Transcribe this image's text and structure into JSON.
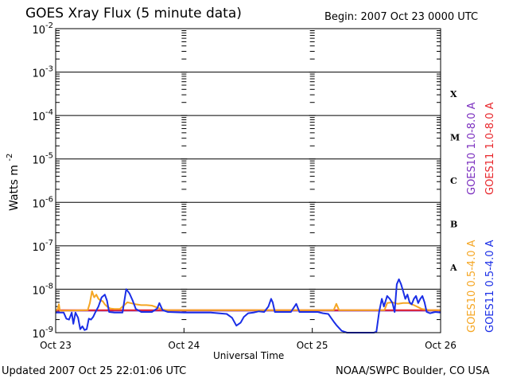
{
  "header": {
    "title": "GOES Xray Flux (5 minute data)",
    "begin": "Begin:  2007 Oct 23 0000 UTC"
  },
  "footer": {
    "updated": "Updated 2007 Oct 25 22:01:06 UTC",
    "credit": "NOAA/SWPC Boulder, CO USA"
  },
  "chart_data": {
    "type": "line",
    "title": "GOES Xray Flux (5 minute data)",
    "xlabel": "Universal Time",
    "ylabel": "Watts m",
    "ylabel_superscript": "-2",
    "y_scale": "log",
    "ylim": [
      1e-09,
      0.01
    ],
    "xlim": [
      0,
      72
    ],
    "x_unit": "hours since 2007 Oct 23 0000 UTC",
    "grid": true,
    "x_ticks": [
      {
        "x": 0,
        "label": "Oct 23"
      },
      {
        "x": 24,
        "label": "Oct 24"
      },
      {
        "x": 48,
        "label": "Oct 25"
      },
      {
        "x": 72,
        "label": "Oct 26"
      }
    ],
    "y_ticks": [
      {
        "exp": -2,
        "base": "10",
        "sup": "-2"
      },
      {
        "exp": -3,
        "base": "10",
        "sup": "-3"
      },
      {
        "exp": -4,
        "base": "10",
        "sup": "-4"
      },
      {
        "exp": -5,
        "base": "10",
        "sup": "-5"
      },
      {
        "exp": -6,
        "base": "10",
        "sup": "-6"
      },
      {
        "exp": -7,
        "base": "10",
        "sup": "-7"
      },
      {
        "exp": -8,
        "base": "10",
        "sup": "-8"
      },
      {
        "exp": -9,
        "base": "10",
        "sup": "-9"
      }
    ],
    "flare_classes": [
      {
        "label": "X",
        "exp": -3.5
      },
      {
        "label": "M",
        "exp": -4.5
      },
      {
        "label": "C",
        "exp": -5.5
      },
      {
        "label": "B",
        "exp": -6.5
      },
      {
        "label": "A",
        "exp": -7.5
      }
    ],
    "legend": {
      "placement": "right-vertical",
      "entries": [
        {
          "label": "GOES10 1.0-8.0 A",
          "color": "#7b2fbf",
          "group": "top"
        },
        {
          "label": "GOES11 1.0-8.0 A",
          "color": "#e8262b",
          "group": "top"
        },
        {
          "label": "GOES10 0.5-4.0 A",
          "color": "#f5a623",
          "group": "bottom"
        },
        {
          "label": "GOES11 0.5-4.0 A",
          "color": "#1a2ee6",
          "group": "bottom"
        }
      ]
    },
    "series": [
      {
        "name": "GOES10 1.0-8.0 A",
        "color": "#7b2fbf",
        "points": [
          [
            0,
            3.2e-09
          ],
          [
            72,
            3.2e-09
          ]
        ]
      },
      {
        "name": "GOES11 1.0-8.0 A",
        "color": "#e8262b",
        "points": [
          [
            0,
            3.3e-09
          ],
          [
            72,
            3.3e-09
          ]
        ]
      },
      {
        "name": "GOES10 0.5-4.0 A",
        "color": "#f5a623",
        "points": [
          [
            0.0,
            3.2e-09
          ],
          [
            0.4,
            3.5e-09
          ],
          [
            0.6,
            4.5e-09
          ],
          [
            0.8,
            3.2e-09
          ],
          [
            1.2,
            3.2e-09
          ],
          [
            6.0,
            3.3e-09
          ],
          [
            6.4,
            4.8e-09
          ],
          [
            6.8,
            9e-09
          ],
          [
            7.2,
            6.5e-09
          ],
          [
            7.6,
            7.5e-09
          ],
          [
            8.0,
            6e-09
          ],
          [
            8.4,
            5.5e-09
          ],
          [
            8.8,
            5.3e-09
          ],
          [
            9.2,
            4.5e-09
          ],
          [
            9.6,
            4e-09
          ],
          [
            10.2,
            3.6e-09
          ],
          [
            11.0,
            3.5e-09
          ],
          [
            12.0,
            3.5e-09
          ],
          [
            13.0,
            4.5e-09
          ],
          [
            13.4,
            5e-09
          ],
          [
            14.0,
            4.8e-09
          ],
          [
            15.0,
            4.5e-09
          ],
          [
            16.0,
            4.3e-09
          ],
          [
            17.0,
            4.3e-09
          ],
          [
            18.0,
            4.2e-09
          ],
          [
            19.0,
            3.8e-09
          ],
          [
            20.0,
            3.4e-09
          ],
          [
            21.0,
            3.3e-09
          ],
          [
            24.0,
            3.3e-09
          ],
          [
            52.0,
            3.3e-09
          ],
          [
            52.5,
            4.6e-09
          ],
          [
            53.0,
            3.3e-09
          ],
          [
            61.5,
            3.3e-09
          ],
          [
            62.0,
            4.8e-09
          ],
          [
            63.0,
            5e-09
          ],
          [
            64.0,
            4.6e-09
          ],
          [
            65.0,
            4.8e-09
          ],
          [
            66.0,
            4.8e-09
          ],
          [
            67.0,
            4.3e-09
          ],
          [
            68.5,
            3.5e-09
          ],
          [
            70.0,
            3.3e-09
          ],
          [
            72.0,
            3.3e-09
          ]
        ]
      },
      {
        "name": "GOES11 0.5-4.0 A",
        "color": "#1a2ee6",
        "points": [
          [
            0.0,
            2.9e-09
          ],
          [
            1.5,
            2.9e-09
          ],
          [
            2.0,
            2.1e-09
          ],
          [
            2.5,
            2e-09
          ],
          [
            3.0,
            2.9e-09
          ],
          [
            3.3,
            1.6e-09
          ],
          [
            3.7,
            2.9e-09
          ],
          [
            4.2,
            2.2e-09
          ],
          [
            4.6,
            1.2e-09
          ],
          [
            5.0,
            1.4e-09
          ],
          [
            5.4,
            1.15e-09
          ],
          [
            5.8,
            1.2e-09
          ],
          [
            6.2,
            2.1e-09
          ],
          [
            6.6,
            2e-09
          ],
          [
            7.0,
            2.3e-09
          ],
          [
            7.4,
            2.9e-09
          ],
          [
            8.0,
            4e-09
          ],
          [
            8.6,
            6.5e-09
          ],
          [
            9.2,
            7.5e-09
          ],
          [
            9.6,
            5.5e-09
          ],
          [
            10.0,
            3e-09
          ],
          [
            11.0,
            2.9e-09
          ],
          [
            12.5,
            2.9e-09
          ],
          [
            13.2,
            1e-08
          ],
          [
            13.8,
            8e-09
          ],
          [
            14.4,
            5.5e-09
          ],
          [
            15.0,
            3.5e-09
          ],
          [
            16.0,
            3e-09
          ],
          [
            17.0,
            3e-09
          ],
          [
            18.0,
            3e-09
          ],
          [
            19.0,
            3.6e-09
          ],
          [
            19.4,
            4.8e-09
          ],
          [
            20.0,
            3.3e-09
          ],
          [
            21.0,
            3e-09
          ],
          [
            24.0,
            2.9e-09
          ],
          [
            29.0,
            2.9e-09
          ],
          [
            32.0,
            2.7e-09
          ],
          [
            33.0,
            2.2e-09
          ],
          [
            33.8,
            1.45e-09
          ],
          [
            34.6,
            1.7e-09
          ],
          [
            35.2,
            2.3e-09
          ],
          [
            36.0,
            2.8e-09
          ],
          [
            37.0,
            2.9e-09
          ],
          [
            38.0,
            3.1e-09
          ],
          [
            39.0,
            3e-09
          ],
          [
            39.8,
            4e-09
          ],
          [
            40.3,
            6e-09
          ],
          [
            40.6,
            5e-09
          ],
          [
            41.0,
            3e-09
          ],
          [
            44.0,
            3e-09
          ],
          [
            45.0,
            4.6e-09
          ],
          [
            45.6,
            3e-09
          ],
          [
            48.0,
            3e-09
          ],
          [
            49.0,
            3e-09
          ],
          [
            50.0,
            2.8e-09
          ],
          [
            51.0,
            2.7e-09
          ],
          [
            51.5,
            2.2e-09
          ],
          [
            52.0,
            1.8e-09
          ],
          [
            52.5,
            1.5e-09
          ],
          [
            53.5,
            1.1e-09
          ],
          [
            54.5,
            1e-09
          ],
          [
            56.5,
            1e-09
          ],
          [
            57.5,
            1e-09
          ],
          [
            59.0,
            1e-09
          ],
          [
            59.5,
            1e-09
          ],
          [
            60.0,
            1.05e-09
          ],
          [
            60.5,
            3e-09
          ],
          [
            61.0,
            6e-09
          ],
          [
            61.4,
            4e-09
          ],
          [
            62.0,
            7e-09
          ],
          [
            62.5,
            6e-09
          ],
          [
            63.0,
            4.8e-09
          ],
          [
            63.4,
            3e-09
          ],
          [
            63.8,
            1.3e-08
          ],
          [
            64.2,
            1.7e-08
          ],
          [
            64.6,
            1.3e-08
          ],
          [
            65.0,
            9e-09
          ],
          [
            65.4,
            6e-09
          ],
          [
            65.8,
            7.5e-09
          ],
          [
            66.2,
            5e-09
          ],
          [
            66.6,
            4.5e-09
          ],
          [
            67.0,
            6e-09
          ],
          [
            67.4,
            7e-09
          ],
          [
            67.8,
            4.8e-09
          ],
          [
            68.2,
            6e-09
          ],
          [
            68.6,
            7e-09
          ],
          [
            69.0,
            5e-09
          ],
          [
            69.4,
            3e-09
          ],
          [
            70.0,
            2.8e-09
          ],
          [
            71.0,
            3e-09
          ],
          [
            72.0,
            2.9e-09
          ]
        ]
      }
    ]
  }
}
